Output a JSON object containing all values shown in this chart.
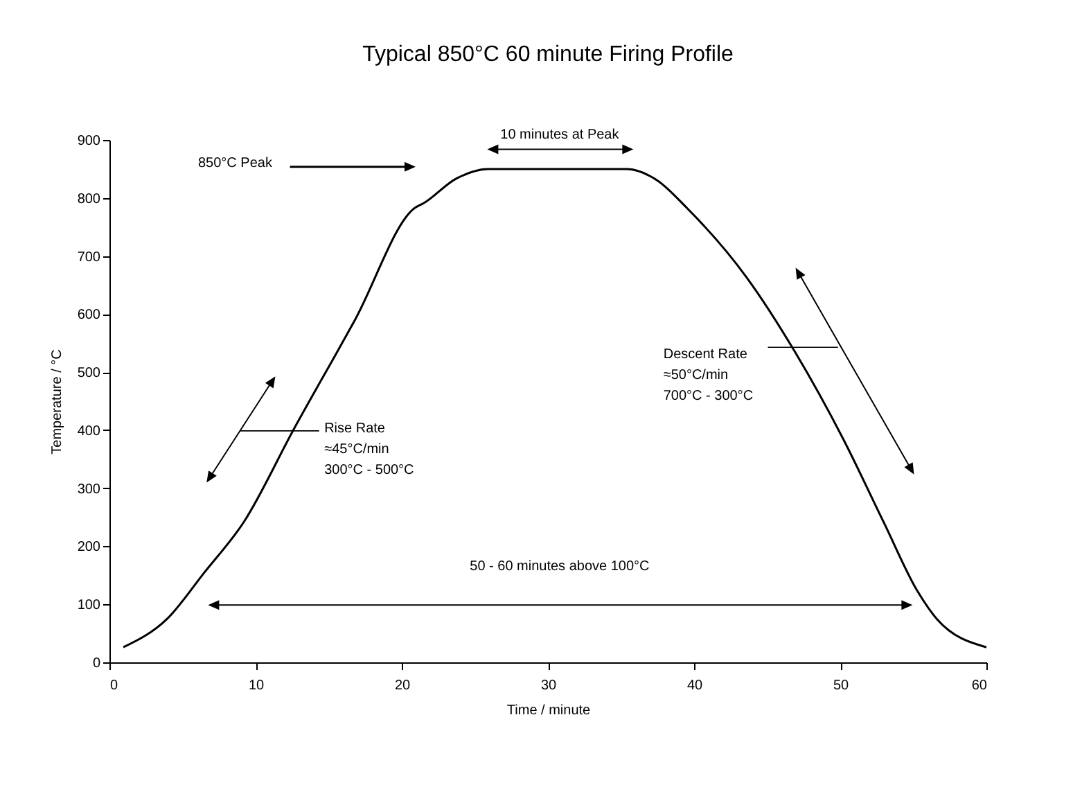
{
  "chart_data": {
    "type": "line",
    "title": "Typical 850°C 60 minute Firing Profile",
    "xlabel": "Time / minute",
    "ylabel": "Temperature / °C",
    "x": [
      0.95,
      3.95,
      6.5,
      9.2,
      12.6,
      16.8,
      20.9,
      21.5,
      23.7,
      25.9,
      35.4,
      37.5,
      39.5,
      43.6,
      46.9,
      50.2,
      53.0,
      55.3,
      56.6,
      60
    ],
    "series": [
      {
        "color": "#000000",
        "values": [
          26,
          75,
          155,
          242,
          401,
          590,
          783,
          791,
          833,
          850,
          850,
          830,
          783,
          663,
          535,
          385,
          240,
          122,
          75,
          26
        ]
      }
    ],
    "xlim": [
      0,
      60
    ],
    "xticks": [
      0,
      10,
      20,
      30,
      40,
      50,
      60
    ],
    "ylim": [
      0,
      900
    ],
    "yticks": [
      0,
      100,
      200,
      300,
      400,
      500,
      600,
      700,
      800,
      900
    ],
    "grid": false,
    "marker": "none",
    "line_style": "solid",
    "annotations": [
      "850°C Peak",
      "10 minutes at Peak",
      "Rise Rate\n≈45°C/min\n300°C - 500°C",
      "Descent Rate\n≈50°C/min\n700°C - 300°C",
      "50 - 60 minutes above 100°C"
    ]
  }
}
